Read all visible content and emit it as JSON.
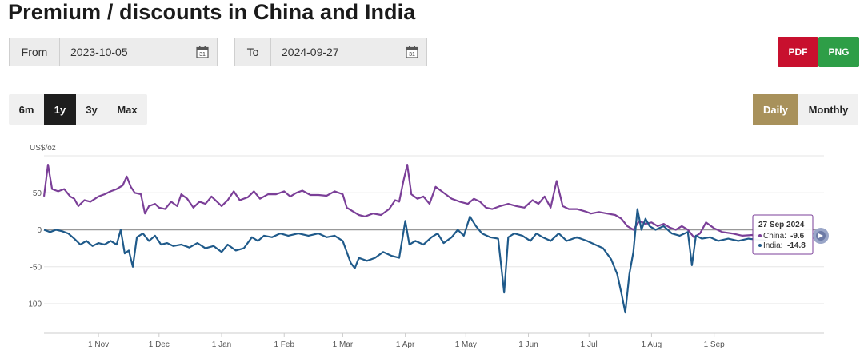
{
  "page": {
    "title": "Premium / discounts in China and India"
  },
  "date_range": {
    "from_label": "From",
    "from_value": "2023-10-05",
    "to_label": "To",
    "to_value": "2024-09-27"
  },
  "export": {
    "pdf_label": "PDF",
    "png_label": "PNG",
    "pdf_color": "#c8102e",
    "png_color": "#2e9e47"
  },
  "range_buttons": [
    {
      "label": "6m",
      "active": false
    },
    {
      "label": "1y",
      "active": true
    },
    {
      "label": "3y",
      "active": false
    },
    {
      "label": "Max",
      "active": false
    }
  ],
  "frequency_buttons": [
    {
      "label": "Daily",
      "active": true
    },
    {
      "label": "Monthly",
      "active": false
    }
  ],
  "tooltip": {
    "date": "27 Sep 2024",
    "china_label": "China:",
    "china_value": "-9.6",
    "india_label": "India:",
    "india_value": "-14.8"
  },
  "icons": {
    "calendar": "calendar-icon",
    "menu": "chart-menu-icon"
  },
  "chart_data": {
    "type": "line",
    "title": "",
    "ylabel": "US$/oz",
    "xlabel": "",
    "ylim": [
      -140,
      100
    ],
    "yticks": [
      50,
      0,
      -50,
      -100
    ],
    "xlim": [
      "2023-10-05",
      "2024-09-27"
    ],
    "xticks": [
      {
        "date": "2023-11-01",
        "label": "1 Nov"
      },
      {
        "date": "2023-12-01",
        "label": "1 Dec"
      },
      {
        "date": "2024-01-01",
        "label": "1 Jan"
      },
      {
        "date": "2024-02-01",
        "label": "1 Feb"
      },
      {
        "date": "2024-03-01",
        "label": "1 Mar"
      },
      {
        "date": "2024-04-01",
        "label": "1 Apr"
      },
      {
        "date": "2024-05-01",
        "label": "1 May"
      },
      {
        "date": "2024-06-01",
        "label": "1 Jun"
      },
      {
        "date": "2024-07-01",
        "label": "1 Jul"
      },
      {
        "date": "2024-08-01",
        "label": "1 Aug"
      },
      {
        "date": "2024-09-01",
        "label": "1 Sep"
      }
    ],
    "grid": true,
    "series": [
      {
        "name": "China",
        "color": "#7b3f98",
        "points": [
          [
            "2023-10-05",
            45
          ],
          [
            "2023-10-07",
            88
          ],
          [
            "2023-10-09",
            55
          ],
          [
            "2023-10-12",
            52
          ],
          [
            "2023-10-15",
            55
          ],
          [
            "2023-10-18",
            45
          ],
          [
            "2023-10-20",
            42
          ],
          [
            "2023-10-22",
            32
          ],
          [
            "2023-10-25",
            40
          ],
          [
            "2023-10-28",
            38
          ],
          [
            "2023-11-01",
            45
          ],
          [
            "2023-11-04",
            48
          ],
          [
            "2023-11-07",
            52
          ],
          [
            "2023-11-10",
            55
          ],
          [
            "2023-11-13",
            60
          ],
          [
            "2023-11-15",
            72
          ],
          [
            "2023-11-17",
            58
          ],
          [
            "2023-11-19",
            50
          ],
          [
            "2023-11-22",
            48
          ],
          [
            "2023-11-24",
            22
          ],
          [
            "2023-11-26",
            32
          ],
          [
            "2023-11-29",
            35
          ],
          [
            "2023-12-01",
            30
          ],
          [
            "2023-12-04",
            28
          ],
          [
            "2023-12-07",
            38
          ],
          [
            "2023-12-10",
            32
          ],
          [
            "2023-12-12",
            48
          ],
          [
            "2023-12-15",
            42
          ],
          [
            "2023-12-18",
            30
          ],
          [
            "2023-12-21",
            38
          ],
          [
            "2023-12-24",
            35
          ],
          [
            "2023-12-27",
            45
          ],
          [
            "2024-01-01",
            32
          ],
          [
            "2024-01-04",
            40
          ],
          [
            "2024-01-07",
            52
          ],
          [
            "2024-01-10",
            40
          ],
          [
            "2024-01-14",
            44
          ],
          [
            "2024-01-17",
            52
          ],
          [
            "2024-01-20",
            42
          ],
          [
            "2024-01-24",
            48
          ],
          [
            "2024-01-28",
            48
          ],
          [
            "2024-02-01",
            52
          ],
          [
            "2024-02-04",
            45
          ],
          [
            "2024-02-07",
            50
          ],
          [
            "2024-02-10",
            53
          ],
          [
            "2024-02-14",
            47
          ],
          [
            "2024-02-18",
            47
          ],
          [
            "2024-02-22",
            46
          ],
          [
            "2024-02-26",
            52
          ],
          [
            "2024-03-01",
            48
          ],
          [
            "2024-03-03",
            30
          ],
          [
            "2024-03-06",
            25
          ],
          [
            "2024-03-09",
            20
          ],
          [
            "2024-03-12",
            18
          ],
          [
            "2024-03-16",
            22
          ],
          [
            "2024-03-20",
            20
          ],
          [
            "2024-03-24",
            28
          ],
          [
            "2024-03-27",
            40
          ],
          [
            "2024-03-29",
            38
          ],
          [
            "2024-03-31",
            65
          ],
          [
            "2024-04-02",
            88
          ],
          [
            "2024-04-04",
            48
          ],
          [
            "2024-04-07",
            42
          ],
          [
            "2024-04-10",
            45
          ],
          [
            "2024-04-13",
            35
          ],
          [
            "2024-04-16",
            58
          ],
          [
            "2024-04-20",
            50
          ],
          [
            "2024-04-24",
            42
          ],
          [
            "2024-04-28",
            38
          ],
          [
            "2024-05-02",
            35
          ],
          [
            "2024-05-05",
            42
          ],
          [
            "2024-05-08",
            38
          ],
          [
            "2024-05-11",
            30
          ],
          [
            "2024-05-14",
            28
          ],
          [
            "2024-05-18",
            32
          ],
          [
            "2024-05-22",
            35
          ],
          [
            "2024-05-26",
            32
          ],
          [
            "2024-05-30",
            30
          ],
          [
            "2024-06-03",
            40
          ],
          [
            "2024-06-06",
            35
          ],
          [
            "2024-06-09",
            45
          ],
          [
            "2024-06-12",
            30
          ],
          [
            "2024-06-15",
            66
          ],
          [
            "2024-06-18",
            32
          ],
          [
            "2024-06-21",
            28
          ],
          [
            "2024-06-25",
            28
          ],
          [
            "2024-06-29",
            25
          ],
          [
            "2024-07-02",
            22
          ],
          [
            "2024-07-06",
            24
          ],
          [
            "2024-07-10",
            22
          ],
          [
            "2024-07-14",
            20
          ],
          [
            "2024-07-17",
            15
          ],
          [
            "2024-07-20",
            5
          ],
          [
            "2024-07-23",
            0
          ],
          [
            "2024-07-26",
            12
          ],
          [
            "2024-07-29",
            8
          ],
          [
            "2024-08-01",
            10
          ],
          [
            "2024-08-04",
            5
          ],
          [
            "2024-08-07",
            8
          ],
          [
            "2024-08-10",
            3
          ],
          [
            "2024-08-13",
            0
          ],
          [
            "2024-08-16",
            5
          ],
          [
            "2024-08-19",
            0
          ],
          [
            "2024-08-22",
            -10
          ],
          [
            "2024-08-25",
            -5
          ],
          [
            "2024-08-28",
            10
          ],
          [
            "2024-09-01",
            2
          ],
          [
            "2024-09-05",
            -3
          ],
          [
            "2024-09-10",
            -5
          ],
          [
            "2024-09-15",
            -8
          ],
          [
            "2024-09-20",
            -7
          ],
          [
            "2024-09-27",
            -9.6
          ]
        ]
      },
      {
        "name": "India",
        "color": "#1f5a8a",
        "points": [
          [
            "2023-10-05",
            0
          ],
          [
            "2023-10-08",
            -3
          ],
          [
            "2023-10-11",
            0
          ],
          [
            "2023-10-14",
            -2
          ],
          [
            "2023-10-17",
            -5
          ],
          [
            "2023-10-20",
            -12
          ],
          [
            "2023-10-23",
            -20
          ],
          [
            "2023-10-26",
            -15
          ],
          [
            "2023-10-29",
            -22
          ],
          [
            "2023-11-01",
            -18
          ],
          [
            "2023-11-04",
            -20
          ],
          [
            "2023-11-07",
            -15
          ],
          [
            "2023-11-10",
            -20
          ],
          [
            "2023-11-12",
            0
          ],
          [
            "2023-11-14",
            -32
          ],
          [
            "2023-11-16",
            -28
          ],
          [
            "2023-11-18",
            -50
          ],
          [
            "2023-11-20",
            -10
          ],
          [
            "2023-11-23",
            -5
          ],
          [
            "2023-11-26",
            -15
          ],
          [
            "2023-11-29",
            -8
          ],
          [
            "2023-12-02",
            -20
          ],
          [
            "2023-12-05",
            -18
          ],
          [
            "2023-12-08",
            -22
          ],
          [
            "2023-12-12",
            -20
          ],
          [
            "2023-12-16",
            -24
          ],
          [
            "2023-12-20",
            -18
          ],
          [
            "2023-12-24",
            -25
          ],
          [
            "2023-12-28",
            -22
          ],
          [
            "2024-01-01",
            -30
          ],
          [
            "2024-01-04",
            -20
          ],
          [
            "2024-01-08",
            -28
          ],
          [
            "2024-01-12",
            -25
          ],
          [
            "2024-01-16",
            -10
          ],
          [
            "2024-01-19",
            -15
          ],
          [
            "2024-01-22",
            -8
          ],
          [
            "2024-01-26",
            -10
          ],
          [
            "2024-01-30",
            -5
          ],
          [
            "2024-02-03",
            -8
          ],
          [
            "2024-02-08",
            -5
          ],
          [
            "2024-02-13",
            -8
          ],
          [
            "2024-02-18",
            -5
          ],
          [
            "2024-02-22",
            -10
          ],
          [
            "2024-02-26",
            -8
          ],
          [
            "2024-03-01",
            -15
          ],
          [
            "2024-03-05",
            -45
          ],
          [
            "2024-03-07",
            -52
          ],
          [
            "2024-03-09",
            -38
          ],
          [
            "2024-03-13",
            -42
          ],
          [
            "2024-03-17",
            -38
          ],
          [
            "2024-03-21",
            -30
          ],
          [
            "2024-03-25",
            -35
          ],
          [
            "2024-03-29",
            -38
          ],
          [
            "2024-04-01",
            12
          ],
          [
            "2024-04-03",
            -20
          ],
          [
            "2024-04-06",
            -15
          ],
          [
            "2024-04-10",
            -20
          ],
          [
            "2024-04-14",
            -10
          ],
          [
            "2024-04-17",
            -5
          ],
          [
            "2024-04-20",
            -18
          ],
          [
            "2024-04-24",
            -10
          ],
          [
            "2024-04-27",
            0
          ],
          [
            "2024-04-30",
            -8
          ],
          [
            "2024-05-03",
            18
          ],
          [
            "2024-05-06",
            5
          ],
          [
            "2024-05-09",
            -5
          ],
          [
            "2024-05-13",
            -10
          ],
          [
            "2024-05-17",
            -12
          ],
          [
            "2024-05-20",
            -85
          ],
          [
            "2024-05-22",
            -10
          ],
          [
            "2024-05-25",
            -5
          ],
          [
            "2024-05-29",
            -8
          ],
          [
            "2024-06-02",
            -15
          ],
          [
            "2024-06-05",
            -5
          ],
          [
            "2024-06-08",
            -10
          ],
          [
            "2024-06-12",
            -15
          ],
          [
            "2024-06-16",
            -5
          ],
          [
            "2024-06-20",
            -15
          ],
          [
            "2024-06-25",
            -10
          ],
          [
            "2024-06-30",
            -15
          ],
          [
            "2024-07-04",
            -20
          ],
          [
            "2024-07-08",
            -25
          ],
          [
            "2024-07-12",
            -40
          ],
          [
            "2024-07-15",
            -60
          ],
          [
            "2024-07-17",
            -85
          ],
          [
            "2024-07-19",
            -112
          ],
          [
            "2024-07-21",
            -60
          ],
          [
            "2024-07-23",
            -30
          ],
          [
            "2024-07-25",
            28
          ],
          [
            "2024-07-27",
            0
          ],
          [
            "2024-07-29",
            15
          ],
          [
            "2024-07-31",
            5
          ],
          [
            "2024-08-03",
            0
          ],
          [
            "2024-08-07",
            5
          ],
          [
            "2024-08-11",
            -5
          ],
          [
            "2024-08-15",
            -8
          ],
          [
            "2024-08-19",
            -3
          ],
          [
            "2024-08-21",
            -48
          ],
          [
            "2024-08-23",
            -8
          ],
          [
            "2024-08-26",
            -12
          ],
          [
            "2024-08-30",
            -10
          ],
          [
            "2024-09-03",
            -15
          ],
          [
            "2024-09-08",
            -12
          ],
          [
            "2024-09-13",
            -15
          ],
          [
            "2024-09-18",
            -12
          ],
          [
            "2024-09-27",
            -14.8
          ]
        ]
      }
    ]
  }
}
